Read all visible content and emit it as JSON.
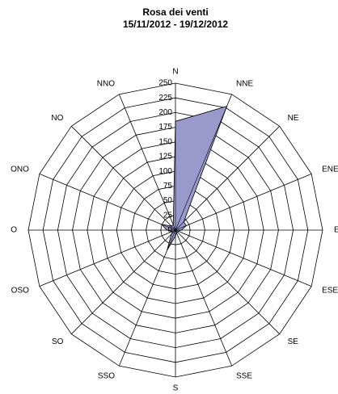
{
  "chart_data": {
    "type": "radar",
    "title": "Rosa dei venti",
    "subtitle": "15/11/2012 - 19/12/2012",
    "categories": [
      "N",
      "NNE",
      "NE",
      "ENE",
      "E",
      "ESE",
      "SE",
      "SSE",
      "S",
      "SSO",
      "SO",
      "OSO",
      "O",
      "ONO",
      "NO",
      "NNO"
    ],
    "values": [
      185,
      228,
      20,
      20,
      10,
      5,
      5,
      5,
      10,
      37,
      10,
      5,
      15,
      25,
      10,
      10
    ],
    "color": "#9999cc",
    "rlim": [
      0,
      250
    ],
    "rticks": [
      0,
      25,
      50,
      75,
      100,
      125,
      150,
      175,
      200,
      225,
      250
    ],
    "grid": true
  }
}
